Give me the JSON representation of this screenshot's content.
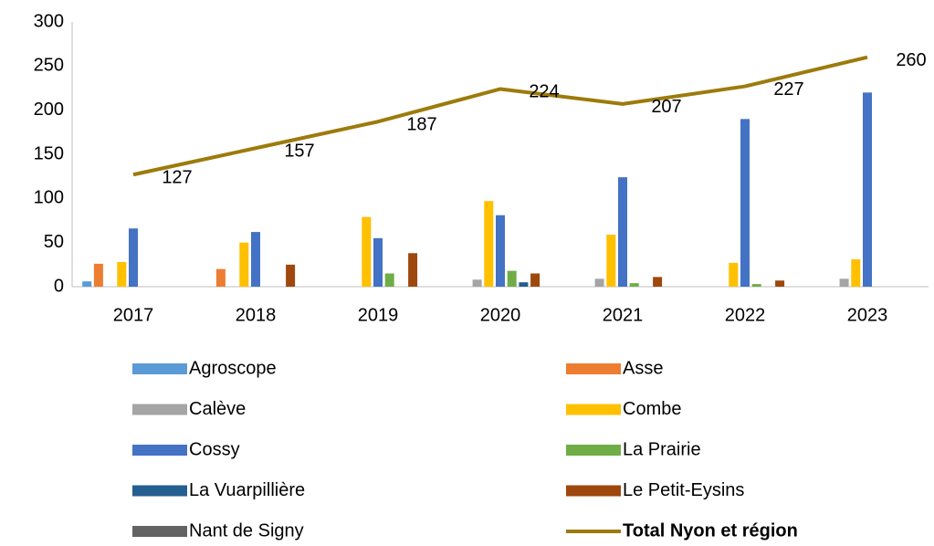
{
  "chart_data": {
    "type": "bar",
    "categories": [
      "2017",
      "2018",
      "2019",
      "2020",
      "2021",
      "2022",
      "2023"
    ],
    "ylim": [
      0,
      300
    ],
    "yticks": [
      0,
      50,
      100,
      150,
      200,
      250,
      300
    ],
    "grid": false,
    "legend": "bottom",
    "series": [
      {
        "name": "Agroscope",
        "color": "#5b9bd5",
        "values": [
          6,
          0,
          0,
          0,
          0,
          0,
          0
        ]
      },
      {
        "name": "Asse",
        "color": "#ed7d31",
        "values": [
          26,
          20,
          0,
          0,
          0,
          0,
          0
        ]
      },
      {
        "name": "Calève",
        "color": "#a5a5a5",
        "values": [
          0,
          0,
          0,
          8,
          9,
          0,
          9
        ]
      },
      {
        "name": "Combe",
        "color": "#ffc000",
        "values": [
          28,
          50,
          79,
          97,
          59,
          27,
          31
        ]
      },
      {
        "name": "Cossy",
        "color": "#4472c4",
        "values": [
          66,
          62,
          55,
          81,
          124,
          190,
          220
        ]
      },
      {
        "name": "La Prairie",
        "color": "#70ad47",
        "values": [
          0,
          0,
          15,
          18,
          4,
          3,
          0
        ]
      },
      {
        "name": "La Vuarpillière",
        "color": "#255e91",
        "values": [
          0,
          0,
          0,
          5,
          0,
          0,
          0
        ]
      },
      {
        "name": "Le Petit-Eysins",
        "color": "#9e480e",
        "values": [
          0,
          25,
          38,
          15,
          11,
          7,
          0
        ]
      },
      {
        "name": "Nant de Signy",
        "color": "#636363",
        "values": [
          0,
          0,
          0,
          0,
          0,
          0,
          0
        ]
      },
      {
        "name": "Total Nyon et région",
        "type": "line",
        "color": "#9c7b0c",
        "values": [
          127,
          157,
          187,
          224,
          207,
          227,
          260
        ]
      }
    ]
  }
}
